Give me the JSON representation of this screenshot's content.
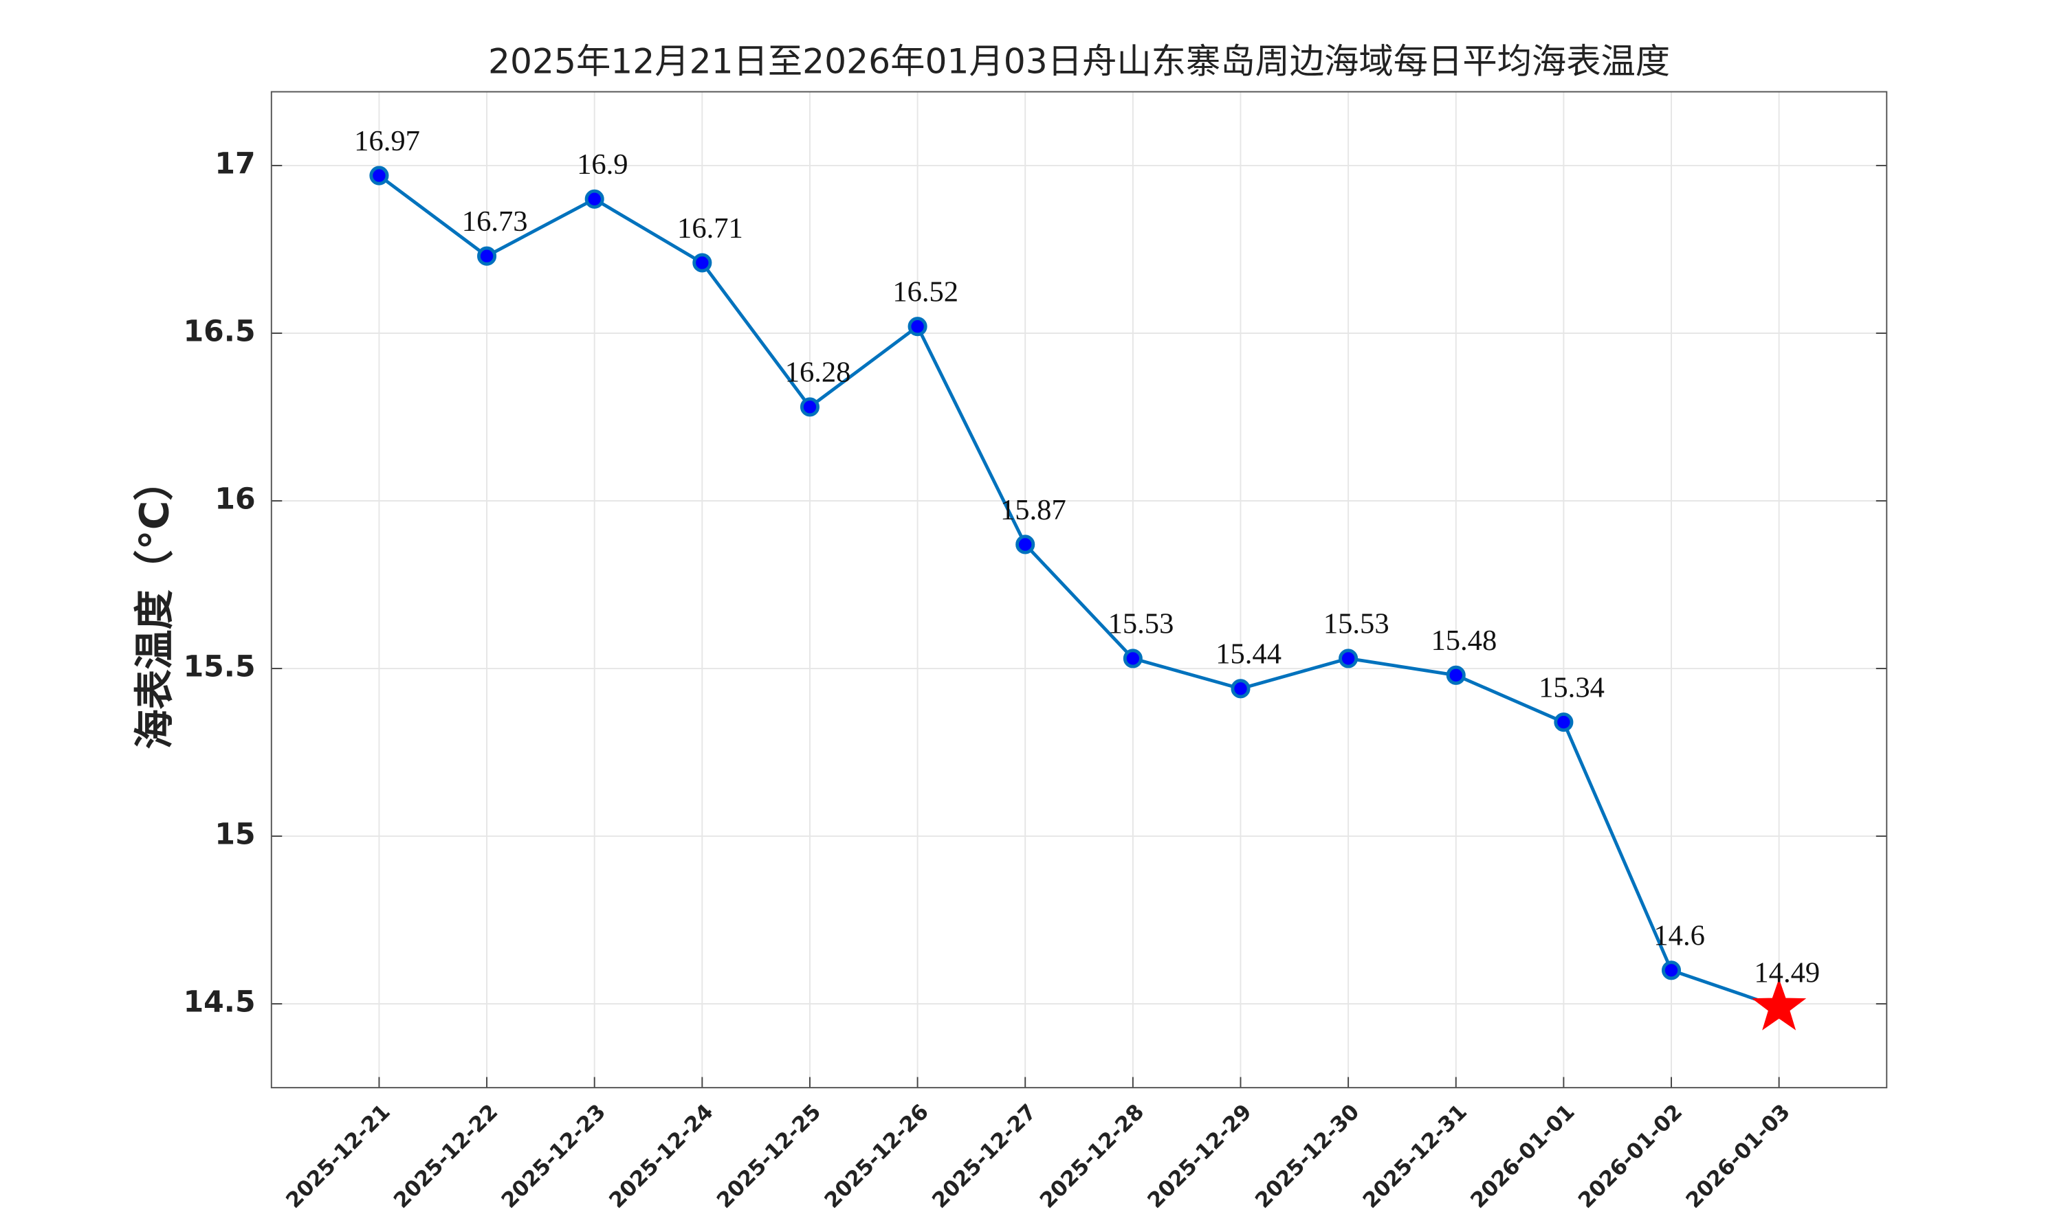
{
  "chart_data": {
    "type": "line",
    "title": "2025年12月21日至2026年01月03日舟山东寨岛周边海域每日平均海表温度",
    "y_label": "海表温度（°C）",
    "categories": [
      "2025-12-21",
      "2025-12-22",
      "2025-12-23",
      "2025-12-24",
      "2025-12-25",
      "2025-12-26",
      "2025-12-27",
      "2025-12-28",
      "2025-12-29",
      "2025-12-30",
      "2025-12-31",
      "2026-01-01",
      "2026-01-02",
      "2026-01-03"
    ],
    "series": [
      {
        "name": "海表温度",
        "color": "#0072bd",
        "marker_color": "#0000ff",
        "values": [
          16.97,
          16.73,
          16.9,
          16.71,
          16.28,
          16.52,
          15.87,
          15.53,
          15.44,
          15.53,
          15.48,
          15.34,
          14.6,
          14.49
        ]
      }
    ],
    "last_marker": "star",
    "last_marker_color": "#ff0000",
    "ylim": [
      14.25,
      17.22
    ],
    "yticks": [
      14.5,
      15,
      15.5,
      16,
      16.5,
      17
    ],
    "grid": true
  }
}
